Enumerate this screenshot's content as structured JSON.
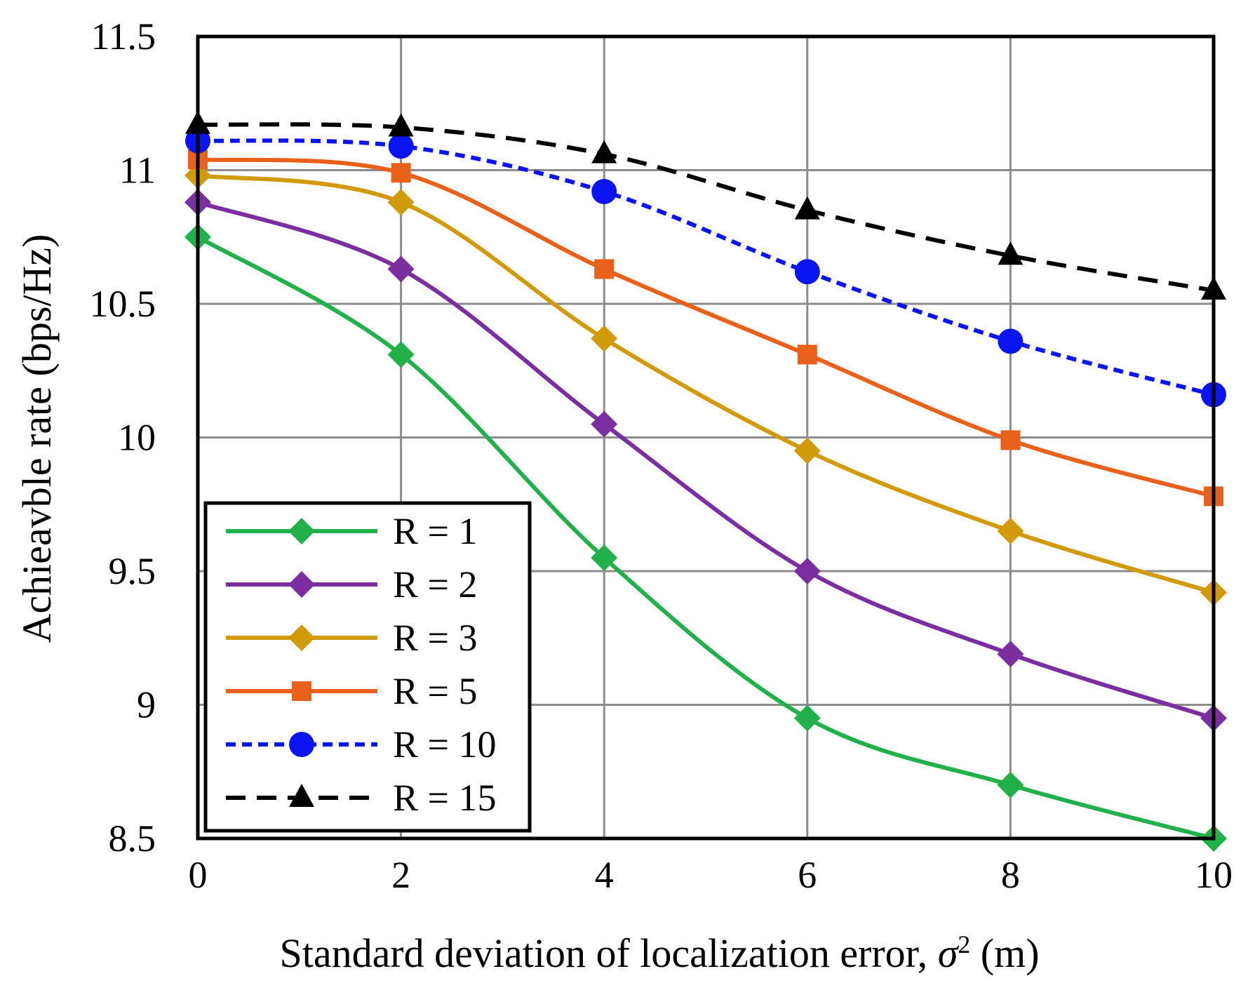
{
  "chart_data": {
    "type": "line",
    "title": "",
    "xlabel": "Standard deviation of localization error,",
    "xlabel_symbol": "σ",
    "xlabel_sup": "2",
    "xlabel_unit": "(m)",
    "ylabel": "Achieavble rate (bps/Hz)",
    "xlim": [
      0,
      10
    ],
    "ylim": [
      8.5,
      11.5
    ],
    "xticks": [
      "0",
      "2",
      "4",
      "6",
      "8",
      "10"
    ],
    "yticks": [
      "8.5",
      "9",
      "9.5",
      "10",
      "10.5",
      "11",
      "11.5"
    ],
    "grid": true,
    "legend_position": "bottom-left",
    "x": [
      0,
      2,
      4,
      6,
      8,
      10
    ],
    "series": [
      {
        "name": "R = 1",
        "values": [
          10.75,
          10.31,
          9.55,
          8.95,
          8.7,
          8.5
        ],
        "color": "#22b04b",
        "marker": "diamond",
        "dash": "solid"
      },
      {
        "name": "R = 2",
        "values": [
          10.88,
          10.63,
          10.05,
          9.5,
          9.19,
          8.95
        ],
        "color": "#7a2ea0",
        "marker": "diamond",
        "dash": "solid"
      },
      {
        "name": "R = 3",
        "values": [
          10.98,
          10.88,
          10.37,
          9.95,
          9.65,
          9.42
        ],
        "color": "#d19a08",
        "marker": "diamond",
        "dash": "solid"
      },
      {
        "name": "R = 5",
        "values": [
          11.04,
          10.99,
          10.63,
          10.31,
          9.99,
          9.78
        ],
        "color": "#e8601a",
        "marker": "square",
        "dash": "solid"
      },
      {
        "name": "R = 10",
        "values": [
          11.11,
          11.09,
          10.92,
          10.62,
          10.36,
          10.16
        ],
        "color": "#0a14f0",
        "marker": "circle",
        "dash": "dotted"
      },
      {
        "name": "R = 15",
        "values": [
          11.17,
          11.16,
          11.06,
          10.85,
          10.68,
          10.55
        ],
        "color": "#000000",
        "marker": "triangle",
        "dash": "dashed"
      }
    ]
  }
}
